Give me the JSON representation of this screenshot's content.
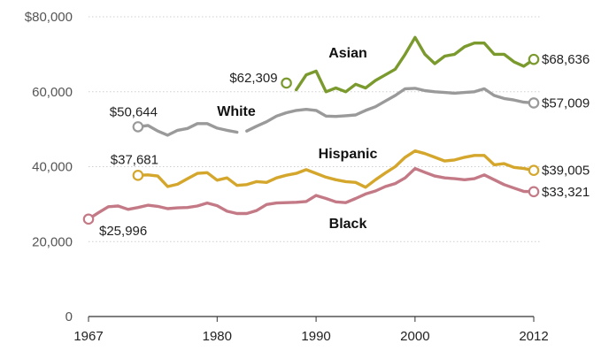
{
  "chart_data": {
    "type": "line",
    "xlim": [
      1967,
      2012
    ],
    "ylim": [
      0,
      80000
    ],
    "y_ticks": [
      {
        "value": 0,
        "label": "0"
      },
      {
        "value": 20000,
        "label": "20,000"
      },
      {
        "value": 40000,
        "label": "40,000"
      },
      {
        "value": 60000,
        "label": "60,000"
      },
      {
        "value": 80000,
        "label": "$80,000"
      }
    ],
    "x_ticks": [
      {
        "value": 1967,
        "label": "1967"
      },
      {
        "value": 1980,
        "label": "1980"
      },
      {
        "value": 1990,
        "label": "1990"
      },
      {
        "value": 2000,
        "label": "2000"
      },
      {
        "value": 2012,
        "label": "2012"
      }
    ],
    "grid": true,
    "series": [
      {
        "name": "Asian",
        "color": "#7a9a2e",
        "segments": [
          [
            [
              1988,
              60500
            ],
            [
              1989,
              64500
            ],
            [
              1990,
              65500
            ],
            [
              1991,
              60000
            ],
            [
              1992,
              61000
            ],
            [
              1993,
              60000
            ],
            [
              1994,
              62000
            ],
            [
              1995,
              61000
            ],
            [
              1996,
              63000
            ],
            [
              1997,
              64500
            ],
            [
              1998,
              66000
            ],
            [
              1999,
              70000
            ],
            [
              2000,
              74500
            ],
            [
              2001,
              70000
            ],
            [
              2002,
              67500
            ],
            [
              2003,
              69500
            ],
            [
              2004,
              70000
            ],
            [
              2005,
              72000
            ],
            [
              2006,
              73000
            ],
            [
              2007,
              73000
            ],
            [
              2008,
              70000
            ],
            [
              2009,
              70000
            ],
            [
              2010,
              68000
            ],
            [
              2011,
              66800
            ],
            [
              2012,
              68636
            ]
          ]
        ],
        "start_marker": [
          1987,
          62309
        ],
        "end_marker": [
          2012,
          68636
        ],
        "start_label": "$62,309",
        "end_label": "$68,636"
      },
      {
        "name": "White",
        "color": "#9a9a9a",
        "segments": [
          [
            [
              1972,
              50644
            ],
            [
              1973,
              51000
            ],
            [
              1974,
              49500
            ],
            [
              1975,
              48400
            ],
            [
              1976,
              49700
            ],
            [
              1977,
              50200
            ],
            [
              1978,
              51500
            ],
            [
              1979,
              51500
            ],
            [
              1980,
              50300
            ],
            [
              1981,
              49700
            ],
            [
              1982,
              49200
            ]
          ],
          [
            [
              1983,
              49500
            ],
            [
              1984,
              50800
            ],
            [
              1985,
              52000
            ],
            [
              1986,
              53500
            ],
            [
              1987,
              54400
            ],
            [
              1988,
              55000
            ],
            [
              1989,
              55300
            ],
            [
              1990,
              55000
            ],
            [
              1991,
              53500
            ],
            [
              1992,
              53400
            ],
            [
              1993,
              53600
            ],
            [
              1994,
              53800
            ],
            [
              1995,
              55000
            ],
            [
              1996,
              56000
            ],
            [
              1997,
              57500
            ],
            [
              1998,
              59000
            ],
            [
              1999,
              60800
            ],
            [
              2000,
              60900
            ],
            [
              2001,
              60300
            ],
            [
              2002,
              60000
            ],
            [
              2003,
              59800
            ],
            [
              2004,
              59600
            ],
            [
              2005,
              59800
            ],
            [
              2006,
              60000
            ],
            [
              2007,
              60800
            ],
            [
              2008,
              59000
            ],
            [
              2009,
              58200
            ],
            [
              2010,
              57800
            ],
            [
              2011,
              57200
            ],
            [
              2012,
              57009
            ]
          ]
        ],
        "start_marker": [
          1972,
          50644
        ],
        "end_marker": [
          2012,
          57009
        ],
        "start_label": "$50,644",
        "end_label": "$57,009"
      },
      {
        "name": "Hispanic",
        "color": "#d4a72c",
        "segments": [
          [
            [
              1972,
              37681
            ],
            [
              1973,
              37800
            ],
            [
              1974,
              37500
            ],
            [
              1975,
              34700
            ],
            [
              1976,
              35300
            ],
            [
              1977,
              36800
            ],
            [
              1978,
              38200
            ],
            [
              1979,
              38400
            ],
            [
              1980,
              36400
            ],
            [
              1981,
              37000
            ],
            [
              1982,
              35000
            ],
            [
              1983,
              35200
            ],
            [
              1984,
              36000
            ],
            [
              1985,
              35800
            ],
            [
              1986,
              37000
            ],
            [
              1987,
              37700
            ],
            [
              1988,
              38200
            ],
            [
              1989,
              39200
            ],
            [
              1990,
              38200
            ],
            [
              1991,
              37200
            ],
            [
              1992,
              36500
            ],
            [
              1993,
              36000
            ],
            [
              1994,
              35800
            ],
            [
              1995,
              34500
            ],
            [
              1996,
              36500
            ],
            [
              1997,
              38300
            ],
            [
              1998,
              40000
            ],
            [
              1999,
              42500
            ],
            [
              2000,
              44200
            ],
            [
              2001,
              43500
            ],
            [
              2002,
              42500
            ],
            [
              2003,
              41500
            ],
            [
              2004,
              41800
            ],
            [
              2005,
              42500
            ],
            [
              2006,
              43000
            ],
            [
              2007,
              43000
            ],
            [
              2008,
              40500
            ],
            [
              2009,
              40800
            ],
            [
              2010,
              39800
            ],
            [
              2011,
              39500
            ],
            [
              2012,
              39005
            ]
          ]
        ],
        "start_marker": [
          1972,
          37681
        ],
        "end_marker": [
          2012,
          39005
        ],
        "start_label": "$37,681",
        "end_label": "$39,005"
      },
      {
        "name": "Black",
        "color": "#c47a86",
        "segments": [
          [
            [
              1967,
              25996
            ],
            [
              1968,
              27700
            ],
            [
              1969,
              29300
            ],
            [
              1970,
              29500
            ],
            [
              1971,
              28600
            ],
            [
              1972,
              29100
            ],
            [
              1973,
              29700
            ],
            [
              1974,
              29400
            ],
            [
              1975,
              28800
            ],
            [
              1976,
              29000
            ],
            [
              1977,
              29100
            ],
            [
              1978,
              29500
            ],
            [
              1979,
              30300
            ],
            [
              1980,
              29600
            ],
            [
              1981,
              28100
            ],
            [
              1982,
              27500
            ],
            [
              1983,
              27500
            ],
            [
              1984,
              28300
            ],
            [
              1985,
              29900
            ],
            [
              1986,
              30300
            ],
            [
              1987,
              30400
            ],
            [
              1988,
              30500
            ],
            [
              1989,
              30700
            ],
            [
              1990,
              32300
            ],
            [
              1991,
              31500
            ],
            [
              1992,
              30600
            ],
            [
              1993,
              30400
            ],
            [
              1994,
              31500
            ],
            [
              1995,
              32700
            ],
            [
              1996,
              33500
            ],
            [
              1997,
              34700
            ],
            [
              1998,
              35500
            ],
            [
              1999,
              37000
            ],
            [
              2000,
              39500
            ],
            [
              2001,
              38500
            ],
            [
              2002,
              37500
            ],
            [
              2003,
              37000
            ],
            [
              2004,
              36800
            ],
            [
              2005,
              36500
            ],
            [
              2006,
              36800
            ],
            [
              2007,
              37800
            ],
            [
              2008,
              36500
            ],
            [
              2009,
              35200
            ],
            [
              2010,
              34300
            ],
            [
              2011,
              33400
            ],
            [
              2012,
              33321
            ]
          ]
        ],
        "start_marker": [
          1967,
          25996
        ],
        "end_marker": [
          2012,
          33321
        ],
        "start_label": "$25,996",
        "end_label": "$33,321"
      }
    ]
  }
}
